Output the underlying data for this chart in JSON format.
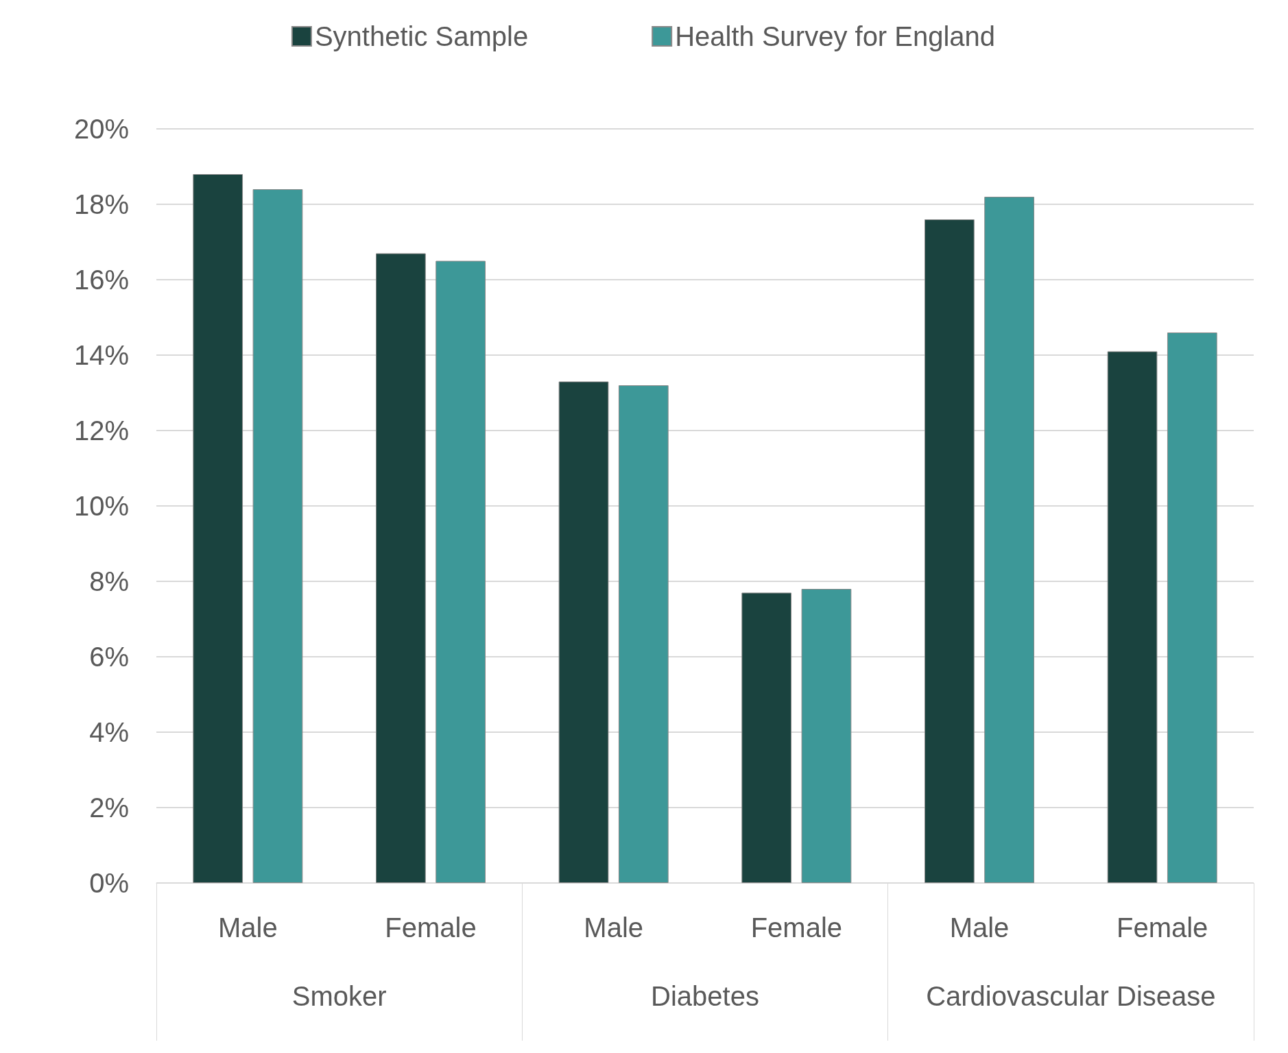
{
  "chart_data": {
    "type": "bar",
    "categories": [
      "Male",
      "Female",
      "Male",
      "Female",
      "Male",
      "Female"
    ],
    "annotations": [
      "Smoker",
      "Diabetes",
      "Cardiovascular Disease"
    ],
    "series": [
      {
        "name": "Synthetic Sample",
        "color": "#1a433f",
        "values": [
          18.8,
          16.7,
          13.3,
          7.7,
          17.6,
          14.1
        ]
      },
      {
        "name": "Health Survey for England",
        "color": "#3d9898",
        "values": [
          18.4,
          16.5,
          13.2,
          7.8,
          18.2,
          14.6
        ]
      }
    ],
    "ylim": [
      0,
      20
    ],
    "yticks": [
      {
        "value": 0,
        "label": "0%"
      },
      {
        "value": 2,
        "label": "2%"
      },
      {
        "value": 4,
        "label": "4%"
      },
      {
        "value": 6,
        "label": "6%"
      },
      {
        "value": 8,
        "label": "8%"
      },
      {
        "value": 10,
        "label": "10%"
      },
      {
        "value": 12,
        "label": "12%"
      },
      {
        "value": 14,
        "label": "14%"
      },
      {
        "value": 16,
        "label": "16%"
      },
      {
        "value": 18,
        "label": "18%"
      },
      {
        "value": 20,
        "label": "20%"
      }
    ],
    "grid": "y",
    "legend": "top"
  }
}
